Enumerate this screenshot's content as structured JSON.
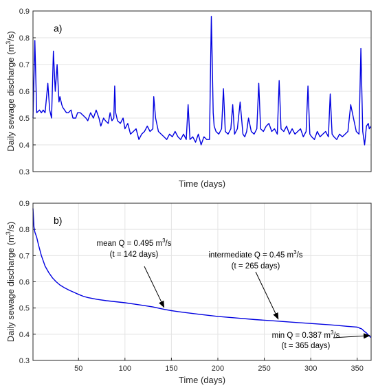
{
  "chart_data": [
    {
      "type": "line",
      "panel_label": "a)",
      "xlabel": "Time (days)",
      "ylabel": "Daily sewage discharge (m",
      "ylabel_sup": "3",
      "ylabel_tail": "/s)",
      "xlim": [
        1,
        365
      ],
      "ylim": [
        0.3,
        0.9
      ],
      "yticks": [
        "0.3",
        "0.4",
        "0.5",
        "0.6",
        "0.7",
        "0.8",
        "0.9"
      ],
      "xticks": [],
      "grid": true,
      "line_color": "#0000e0",
      "series": [
        {
          "x": [
            1,
            3,
            5,
            8,
            10,
            12,
            14,
            17,
            19,
            21,
            23,
            25,
            27,
            29,
            30,
            32,
            33,
            35,
            37,
            39,
            42,
            44,
            47,
            49,
            52,
            55,
            58,
            60,
            63,
            66,
            69,
            72,
            74,
            77,
            79,
            82,
            84,
            86,
            88,
            89,
            90,
            92,
            95,
            98,
            100,
            103,
            106,
            109,
            112,
            115,
            118,
            121,
            124,
            127,
            130,
            131,
            133,
            136,
            139,
            142,
            145,
            148,
            151,
            154,
            157,
            160,
            163,
            166,
            168,
            170,
            173,
            176,
            179,
            182,
            185,
            188,
            191,
            193,
            194,
            195,
            196,
            198,
            201,
            204,
            206,
            208,
            211,
            214,
            216,
            218,
            221,
            224,
            227,
            229,
            231,
            233,
            236,
            239,
            242,
            244,
            246,
            249,
            252,
            255,
            258,
            261,
            264,
            266,
            268,
            271,
            274,
            277,
            280,
            283,
            286,
            289,
            292,
            295,
            297,
            299,
            301,
            304,
            307,
            310,
            313,
            316,
            319,
            321,
            323,
            325,
            328,
            331,
            334,
            337,
            340,
            343,
            346,
            349,
            352,
            354,
            355,
            356,
            358,
            360,
            362,
            363,
            365
          ],
          "y": [
            0.5,
            0.79,
            0.52,
            0.53,
            0.52,
            0.53,
            0.52,
            0.63,
            0.53,
            0.5,
            0.75,
            0.6,
            0.7,
            0.56,
            0.58,
            0.55,
            0.54,
            0.53,
            0.52,
            0.52,
            0.53,
            0.5,
            0.5,
            0.52,
            0.52,
            0.51,
            0.5,
            0.49,
            0.52,
            0.5,
            0.53,
            0.5,
            0.47,
            0.5,
            0.49,
            0.48,
            0.52,
            0.49,
            0.5,
            0.62,
            0.52,
            0.49,
            0.48,
            0.5,
            0.46,
            0.48,
            0.44,
            0.45,
            0.46,
            0.42,
            0.44,
            0.45,
            0.47,
            0.45,
            0.46,
            0.58,
            0.5,
            0.45,
            0.44,
            0.43,
            0.42,
            0.44,
            0.43,
            0.45,
            0.43,
            0.42,
            0.44,
            0.42,
            0.55,
            0.42,
            0.43,
            0.41,
            0.44,
            0.4,
            0.43,
            0.42,
            0.42,
            0.88,
            0.7,
            0.52,
            0.47,
            0.45,
            0.44,
            0.46,
            0.61,
            0.45,
            0.44,
            0.46,
            0.55,
            0.44,
            0.46,
            0.56,
            0.44,
            0.43,
            0.45,
            0.5,
            0.45,
            0.44,
            0.46,
            0.63,
            0.46,
            0.45,
            0.47,
            0.48,
            0.45,
            0.46,
            0.44,
            0.64,
            0.46,
            0.45,
            0.47,
            0.44,
            0.46,
            0.44,
            0.45,
            0.46,
            0.43,
            0.45,
            0.62,
            0.44,
            0.43,
            0.42,
            0.45,
            0.43,
            0.44,
            0.45,
            0.43,
            0.59,
            0.44,
            0.43,
            0.42,
            0.44,
            0.43,
            0.44,
            0.45,
            0.55,
            0.5,
            0.45,
            0.44,
            0.76,
            0.6,
            0.45,
            0.4,
            0.47,
            0.48,
            0.46,
            0.47
          ]
        }
      ]
    },
    {
      "type": "line",
      "panel_label": "b)",
      "xlabel": "Time (days)",
      "ylabel": "Daily sewage discharge (m",
      "ylabel_sup": "3",
      "ylabel_tail": "/s)",
      "xlim": [
        1,
        365
      ],
      "ylim": [
        0.3,
        0.9
      ],
      "yticks": [
        "0.3",
        "0.4",
        "0.5",
        "0.6",
        "0.7",
        "0.8",
        "0.9"
      ],
      "xticks": [
        "50",
        "100",
        "150",
        "200",
        "250",
        "300",
        "350"
      ],
      "xtick_values": [
        50,
        100,
        150,
        200,
        250,
        300,
        350
      ],
      "grid": true,
      "line_color": "#0000e0",
      "series": [
        {
          "x": [
            1,
            2,
            3,
            5,
            7,
            10,
            14,
            18,
            22,
            26,
            30,
            35,
            40,
            45,
            50,
            55,
            60,
            70,
            80,
            90,
            100,
            110,
            120,
            130,
            142,
            150,
            160,
            180,
            200,
            220,
            240,
            265,
            280,
            300,
            320,
            330,
            340,
            350,
            355,
            358,
            360,
            362,
            365
          ],
          "y": [
            0.88,
            0.81,
            0.79,
            0.77,
            0.74,
            0.7,
            0.66,
            0.635,
            0.615,
            0.6,
            0.588,
            0.577,
            0.568,
            0.56,
            0.552,
            0.545,
            0.54,
            0.533,
            0.528,
            0.524,
            0.52,
            0.515,
            0.51,
            0.504,
            0.495,
            0.49,
            0.485,
            0.476,
            0.468,
            0.462,
            0.456,
            0.45,
            0.446,
            0.441,
            0.436,
            0.433,
            0.43,
            0.427,
            0.42,
            0.41,
            0.405,
            0.397,
            0.387
          ]
        }
      ],
      "annotations": [
        {
          "line1": "mean Q = 0.495 m",
          "sup": "3",
          "tail": "/s",
          "line2": "(t = 142 days)",
          "x": 142,
          "y": 0.495
        },
        {
          "line1": "intermediate Q = 0.45 m",
          "sup": "3",
          "tail": "/s",
          "line2": "(t = 265 days)",
          "x": 265,
          "y": 0.45
        },
        {
          "line1": "min Q = 0.387 m",
          "sup": "3",
          "tail": "/s",
          "line2": "(t = 365 days)",
          "x": 365,
          "y": 0.387
        }
      ]
    }
  ]
}
